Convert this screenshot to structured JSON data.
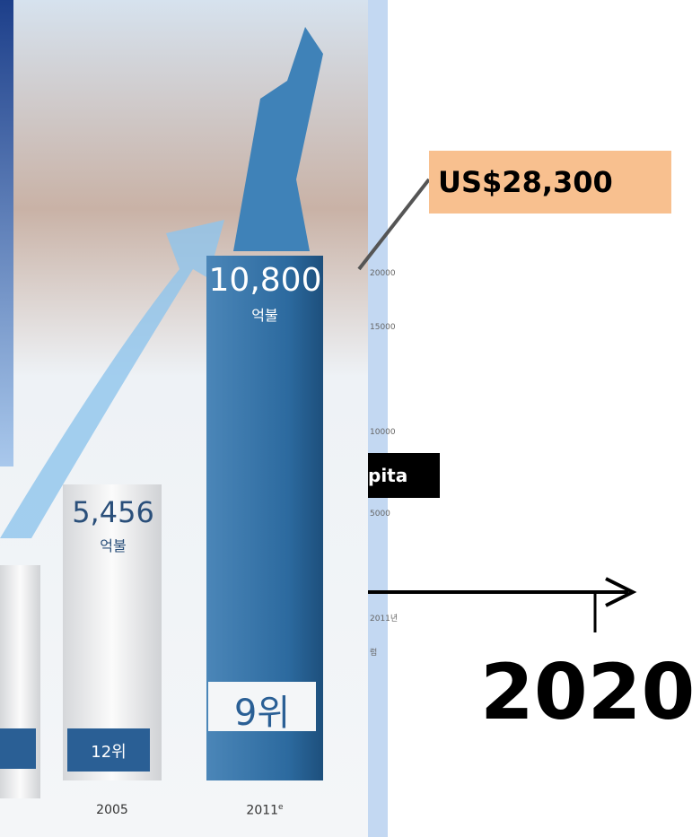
{
  "infographic": {
    "bars": [
      {
        "value_label": "5,456",
        "unit": "억불",
        "rank": "12위",
        "year": "2005"
      },
      {
        "value_label": "10,800",
        "unit": "억불",
        "rank": "9위",
        "year": "2011",
        "year_note": "e"
      }
    ],
    "side_axis_labels": [
      "20000",
      "15000",
      "10000",
      "5000",
      "2011년",
      "럼"
    ]
  },
  "callout": {
    "text": "US$28,300"
  },
  "caption_fragment": "pita",
  "timeline": {
    "year": "2020"
  }
}
